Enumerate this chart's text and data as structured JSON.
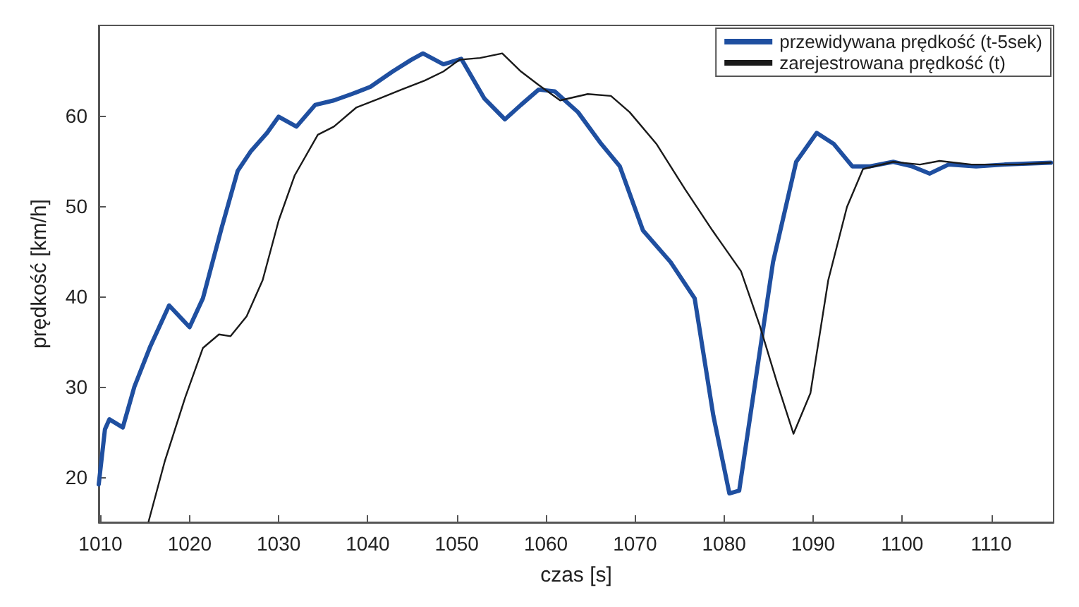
{
  "chart_data": {
    "type": "line",
    "xlabel": "czas [s]",
    "ylabel": "prędkość [km/h]",
    "xlim": [
      1009.8,
      1117
    ],
    "ylim": [
      15,
      70
    ],
    "xticks": [
      1010,
      1020,
      1030,
      1040,
      1050,
      1060,
      1070,
      1080,
      1090,
      1100,
      1110
    ],
    "yticks": [
      20,
      30,
      40,
      50,
      60
    ],
    "grid": false,
    "legend": "top right",
    "marker": "none",
    "line_style": "solid",
    "series": [
      {
        "name": "przewidywana prędkość (t-5sek)",
        "color": "#1f4fa0",
        "x": [
          1009.8,
          1010.5,
          1011,
          1012.5,
          1013.8,
          1015.6,
          1017.7,
          1020,
          1021.5,
          1023.6,
          1025.4,
          1026.9,
          1028.7,
          1030,
          1032,
          1034.1,
          1036.2,
          1038.2,
          1040.3,
          1042.8,
          1044.9,
          1046.2,
          1048.5,
          1050.5,
          1053.1,
          1055.4,
          1057.2,
          1059.2,
          1061,
          1063.6,
          1066.2,
          1068.3,
          1070.9,
          1074,
          1076.7,
          1078.8,
          1080.6,
          1081.7,
          1083.4,
          1085.5,
          1088.1,
          1090.4,
          1092.3,
          1094.4,
          1096.4,
          1099,
          1101.1,
          1103.1,
          1105.2,
          1108.3,
          1111.5,
          1116.7
        ],
        "values": [
          19.2,
          25.3,
          26.4,
          25.5,
          30,
          34.5,
          39,
          36.6,
          39.8,
          47.6,
          53.9,
          56.1,
          58.1,
          59.9,
          58.8,
          61.2,
          61.7,
          62.4,
          63.2,
          64.9,
          66.2,
          66.9,
          65.7,
          66.3,
          61.9,
          59.6,
          61.2,
          62.9,
          62.7,
          60.4,
          56.9,
          54.4,
          47.3,
          43.8,
          39.8,
          26.8,
          18.2,
          18.5,
          29.8,
          43.8,
          54.9,
          58.1,
          56.9,
          54.4,
          54.4,
          54.9,
          54.4,
          53.6,
          54.6,
          54.4,
          54.6,
          54.8
        ]
      },
      {
        "name": "zarejestrowana prędkość (t)",
        "color": "#1a1a1a",
        "x": [
          1015.4,
          1017.2,
          1019.5,
          1021.5,
          1023.3,
          1024.6,
          1026.4,
          1028.2,
          1030,
          1031.8,
          1034.4,
          1036.2,
          1038.7,
          1041.3,
          1043.8,
          1046.4,
          1048.5,
          1050.3,
          1052.6,
          1055.1,
          1057.2,
          1059.2,
          1061.6,
          1064.7,
          1067.3,
          1069.4,
          1072.4,
          1075.6,
          1078.7,
          1081.9,
          1084,
          1086,
          1087.8,
          1089.7,
          1091.7,
          1093.8,
          1095.6,
          1099,
          1102,
          1104.2,
          1107.8,
          1113,
          1116.7
        ],
        "values": [
          15.1,
          21.7,
          28.8,
          34.3,
          35.8,
          35.6,
          37.8,
          41.8,
          48.4,
          53.4,
          57.9,
          58.8,
          60.9,
          61.9,
          62.9,
          63.9,
          64.9,
          66.2,
          66.4,
          66.9,
          64.9,
          63.4,
          61.7,
          62.4,
          62.2,
          60.4,
          56.9,
          51.9,
          47.3,
          42.8,
          36.8,
          30.3,
          24.8,
          29.3,
          41.8,
          49.9,
          54.1,
          54.9,
          54.6,
          55,
          54.6,
          54.6,
          54.8
        ]
      }
    ]
  }
}
